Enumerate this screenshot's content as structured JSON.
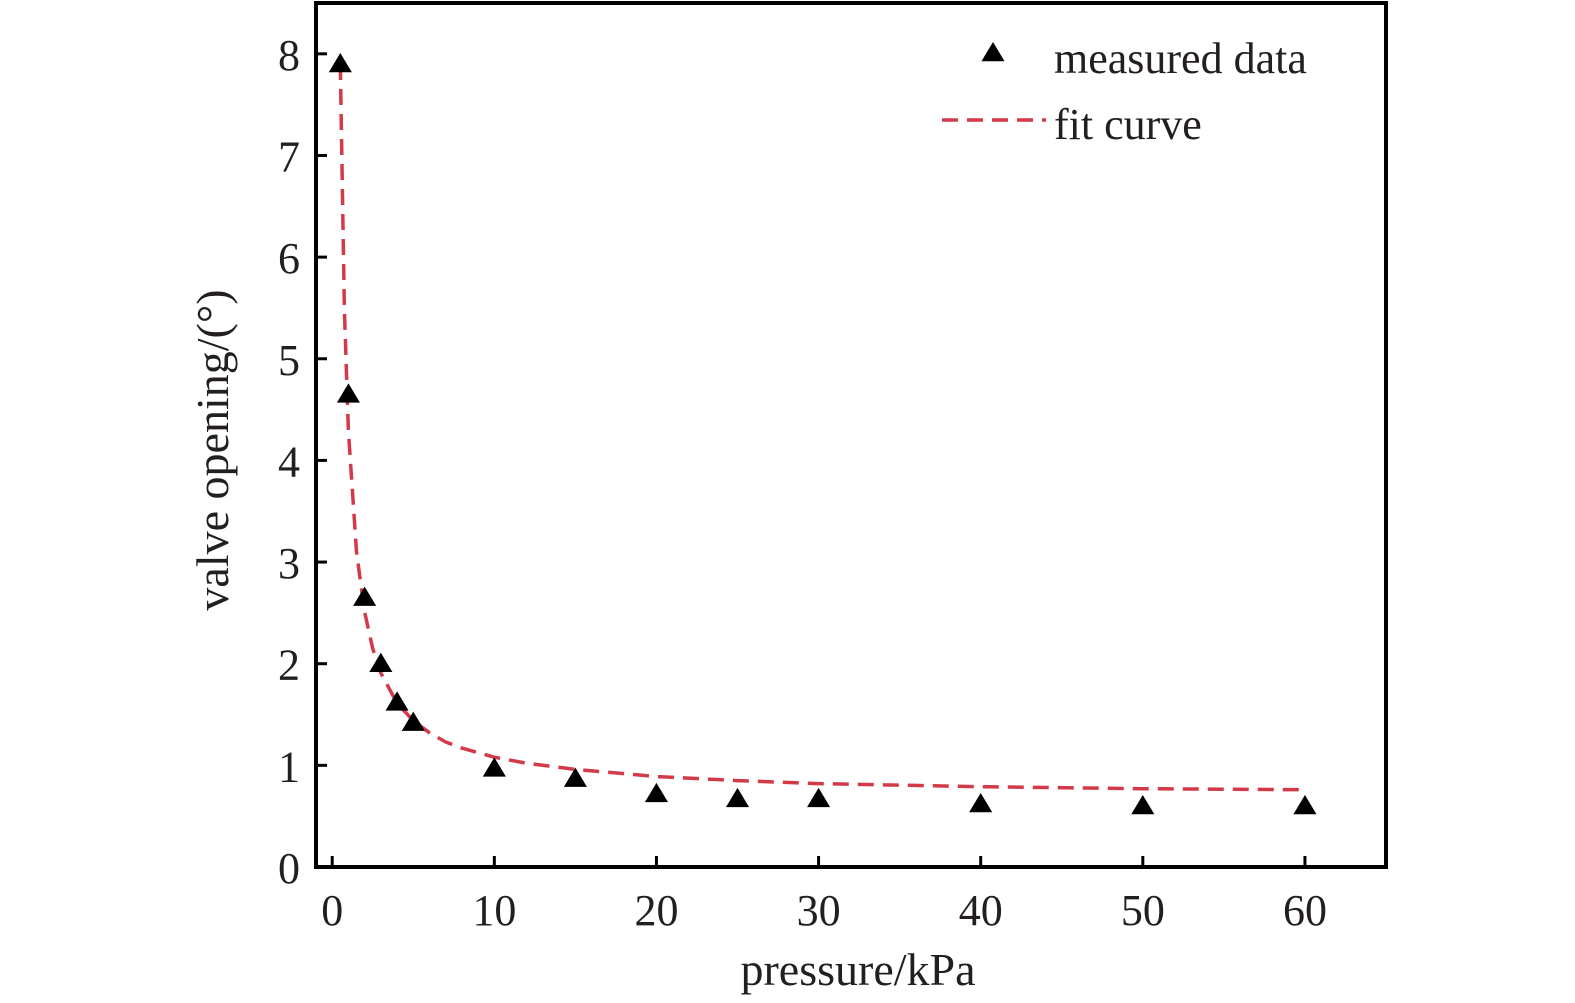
{
  "chart_data": {
    "type": "scatter",
    "xlabel": "pressure/kPa",
    "ylabel": "valve opening/(°)",
    "xlim": [
      -1,
      65
    ],
    "ylim": [
      0,
      8.5
    ],
    "x_ticks": [
      0,
      10,
      20,
      30,
      40,
      50,
      60
    ],
    "y_ticks": [
      0,
      1,
      2,
      3,
      4,
      5,
      6,
      7,
      8
    ],
    "grid": false,
    "legend_position": "top-right",
    "series": [
      {
        "name": "measured data",
        "kind": "scatter",
        "marker": "triangle",
        "color": "#000000",
        "x": [
          0.5,
          1,
          2,
          3,
          4,
          5,
          10,
          15,
          20,
          25,
          30,
          40,
          50,
          60
        ],
        "y": [
          7.9,
          4.65,
          2.65,
          2.0,
          1.62,
          1.42,
          0.97,
          0.87,
          0.72,
          0.67,
          0.67,
          0.62,
          0.6,
          0.6
        ]
      },
      {
        "name": "fit curve",
        "kind": "line",
        "style": "dashed",
        "color": "#d23a4a",
        "x": [
          0.5,
          0.75,
          1,
          1.5,
          2,
          2.5,
          3,
          4,
          5,
          6,
          7,
          8,
          10,
          12,
          15,
          20,
          25,
          30,
          40,
          50,
          60
        ],
        "y": [
          7.9,
          5.48,
          4.29,
          3.1,
          2.51,
          2.15,
          1.91,
          1.61,
          1.44,
          1.32,
          1.23,
          1.17,
          1.08,
          1.02,
          0.96,
          0.89,
          0.85,
          0.82,
          0.79,
          0.77,
          0.76
        ]
      }
    ]
  }
}
